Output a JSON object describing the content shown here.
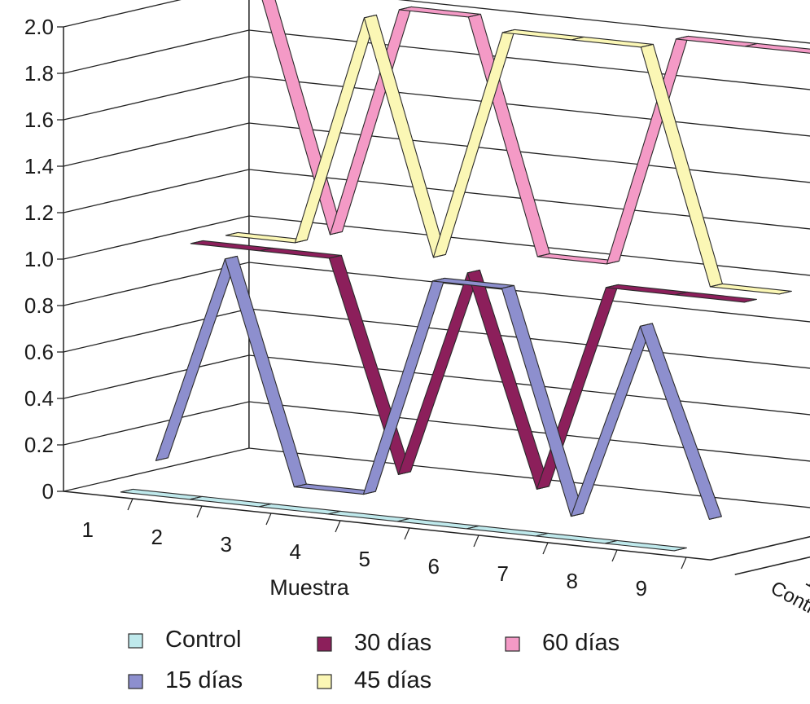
{
  "chart_data": {
    "type": "line",
    "style": "3d-ribbon",
    "xlabel": "Muestra",
    "ylabel": "",
    "categories": [
      "1",
      "2",
      "3",
      "4",
      "5",
      "6",
      "7",
      "8",
      "9"
    ],
    "ylim": [
      0,
      2.0
    ],
    "yticks": [
      "0",
      "0.2",
      "0.4",
      "0.6",
      "0.8",
      "1.0",
      "1.2",
      "1.4",
      "1.6",
      "1.8",
      "2.0"
    ],
    "grid": true,
    "legend_position": "bottom",
    "series": [
      {
        "name": "Control",
        "color": "#bfe9ec",
        "values": [
          0,
          0,
          0,
          0,
          0,
          0,
          0,
          0,
          0
        ]
      },
      {
        "name": "15 días",
        "color": "#8d8fce",
        "values": [
          0.1,
          1.0,
          0.05,
          0.05,
          1.0,
          1.0,
          0.05,
          0.9,
          0.1
        ]
      },
      {
        "name": "30 días",
        "color": "#8c1f5b",
        "values": [
          1.0,
          1.0,
          1.0,
          0.1,
          1.0,
          0.1,
          1.0,
          1.0,
          1.0
        ]
      },
      {
        "name": "45 días",
        "color": "#fbf7b5",
        "values": [
          1.0,
          1.0,
          2.0,
          1.0,
          2.0,
          2.0,
          2.0,
          1.0,
          1.0
        ]
      },
      {
        "name": "60 días",
        "color": "#f49ac6",
        "values": [
          2.0,
          1.0,
          2.0,
          2.0,
          1.0,
          1.0,
          2.0,
          2.0,
          2.0
        ]
      }
    ]
  }
}
